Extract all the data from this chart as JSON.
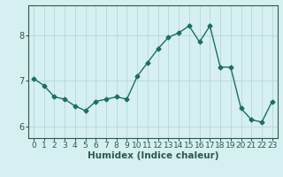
{
  "x": [
    0,
    1,
    2,
    3,
    4,
    5,
    6,
    7,
    8,
    9,
    10,
    11,
    12,
    13,
    14,
    15,
    16,
    17,
    18,
    19,
    20,
    21,
    22,
    23
  ],
  "y": [
    7.05,
    6.9,
    6.65,
    6.6,
    6.45,
    6.35,
    6.55,
    6.6,
    6.65,
    6.6,
    7.1,
    7.4,
    7.7,
    7.95,
    8.05,
    8.2,
    7.85,
    8.2,
    7.3,
    7.3,
    6.4,
    6.15,
    6.1,
    6.55
  ],
  "line_color": "#1a7060",
  "marker": "D",
  "marker_size": 2.5,
  "bg_color": "#d6eff0",
  "grid_color": "#b0d4d4",
  "xlabel": "Humidex (Indice chaleur)",
  "xlim": [
    -0.5,
    23.5
  ],
  "ylim": [
    5.75,
    8.65
  ],
  "yticks": [
    6,
    7,
    8
  ],
  "xticks": [
    0,
    1,
    2,
    3,
    4,
    5,
    6,
    7,
    8,
    9,
    10,
    11,
    12,
    13,
    14,
    15,
    16,
    17,
    18,
    19,
    20,
    21,
    22,
    23
  ],
  "xlabel_fontsize": 7.5,
  "tick_fontsize": 6.5,
  "axis_color": "#2a5a4a"
}
